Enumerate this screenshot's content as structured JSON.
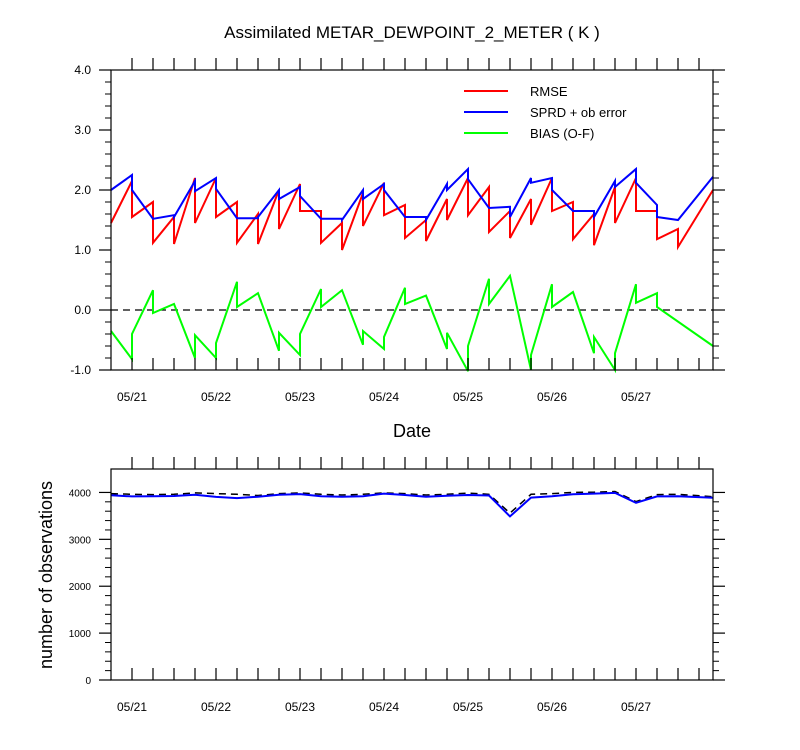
{
  "chart_data": [
    {
      "type": "line",
      "title": "Assimilated METAR_DEWPOINT_2_METER ( K )",
      "xlabel": "Date",
      "ylabel": "",
      "ylim": [
        -1.0,
        4.0
      ],
      "yticks": [
        "-1.0",
        "0.0",
        "1.0",
        "2.0",
        "3.0",
        "4.0"
      ],
      "xlim": [
        0,
        43
      ],
      "xtick_positions": [
        1.5,
        7.5,
        13.5,
        19.5,
        25.5,
        31.5,
        37.5
      ],
      "xtick_labels": [
        "05/21",
        "05/22",
        "05/23",
        "05/24",
        "05/25",
        "05/26",
        "05/27"
      ],
      "legend_position": "top-right",
      "reference_line": {
        "y": 0.0,
        "style": "dashed"
      },
      "colors": {
        "RMSE": "#ff0000",
        "SPRD + ob error": "#0000ff",
        "BIAS (O-F)": "#00ff00"
      },
      "series": [
        {
          "name": "RMSE",
          "color": "#ff0000",
          "segments": [
            [
              [
                0,
                1.45
              ],
              [
                1.5,
                2.15
              ],
              [
                1.5,
                1.55
              ],
              [
                3,
                1.8
              ],
              [
                3,
                1.12
              ],
              [
                4.5,
                1.55
              ],
              [
                4.5,
                1.1
              ],
              [
                6,
                2.2
              ],
              [
                6,
                1.45
              ],
              [
                7.5,
                2.2
              ],
              [
                7.5,
                1.55
              ],
              [
                9,
                1.8
              ],
              [
                9,
                1.12
              ],
              [
                10.5,
                1.6
              ],
              [
                10.5,
                1.1
              ],
              [
                12,
                2.0
              ],
              [
                12,
                1.35
              ],
              [
                13.5,
                2.1
              ],
              [
                13.5,
                1.65
              ],
              [
                15,
                1.65
              ],
              [
                15,
                1.12
              ],
              [
                16.5,
                1.45
              ],
              [
                16.5,
                1.0
              ],
              [
                18,
                1.95
              ],
              [
                18,
                1.4
              ],
              [
                19.5,
                2.12
              ],
              [
                19.5,
                1.58
              ],
              [
                21,
                1.75
              ],
              [
                21,
                1.2
              ],
              [
                22.5,
                1.5
              ],
              [
                22.5,
                1.15
              ],
              [
                24,
                1.85
              ],
              [
                24,
                1.5
              ],
              [
                25.5,
                2.2
              ],
              [
                25.5,
                1.58
              ],
              [
                27,
                2.05
              ],
              [
                27,
                1.3
              ],
              [
                28.5,
                1.65
              ],
              [
                28.5,
                1.2
              ],
              [
                30,
                1.85
              ],
              [
                30,
                1.42
              ],
              [
                31.5,
                2.2
              ],
              [
                31.5,
                1.65
              ],
              [
                33,
                1.8
              ],
              [
                33,
                1.18
              ],
              [
                34.5,
                1.6
              ],
              [
                34.5,
                1.08
              ],
              [
                36,
                2.05
              ],
              [
                36,
                1.45
              ],
              [
                37.5,
                2.2
              ],
              [
                37.5,
                1.65
              ],
              [
                39,
                1.65
              ],
              [
                39,
                1.18
              ],
              [
                40.5,
                1.35
              ],
              [
                40.5,
                1.05
              ],
              [
                43,
                2.0
              ]
            ]
          ]
        },
        {
          "name": "SPRD + ob error",
          "color": "#0000ff",
          "segments": [
            [
              [
                0,
                2.0
              ],
              [
                1.5,
                2.25
              ],
              [
                1.5,
                2.0
              ],
              [
                3,
                1.52
              ],
              [
                4.5,
                1.58
              ],
              [
                4.5,
                1.55
              ],
              [
                6,
                2.15
              ],
              [
                6,
                1.98
              ],
              [
                7.5,
                2.2
              ],
              [
                7.5,
                2.02
              ],
              [
                9,
                1.53
              ],
              [
                10.5,
                1.53
              ],
              [
                10.5,
                1.55
              ],
              [
                12,
                2.0
              ],
              [
                12,
                1.85
              ],
              [
                13.5,
                2.05
              ],
              [
                13.5,
                1.9
              ],
              [
                15,
                1.52
              ],
              [
                16.5,
                1.52
              ],
              [
                16.5,
                1.5
              ],
              [
                18,
                2.0
              ],
              [
                18,
                1.85
              ],
              [
                19.5,
                2.1
              ],
              [
                19.5,
                2.0
              ],
              [
                21,
                1.55
              ],
              [
                22.5,
                1.55
              ],
              [
                22.5,
                1.5
              ],
              [
                24,
                2.1
              ],
              [
                24,
                2.0
              ],
              [
                25.5,
                2.35
              ],
              [
                25.5,
                2.18
              ],
              [
                27,
                1.7
              ],
              [
                28.5,
                1.72
              ],
              [
                28.5,
                1.55
              ],
              [
                30,
                2.2
              ],
              [
                30,
                2.12
              ],
              [
                31.5,
                2.2
              ],
              [
                31.5,
                2.0
              ],
              [
                33,
                1.65
              ],
              [
                34.5,
                1.65
              ],
              [
                34.5,
                1.55
              ],
              [
                36,
                2.15
              ],
              [
                36,
                2.05
              ],
              [
                37.5,
                2.35
              ],
              [
                37.5,
                2.12
              ],
              [
                39,
                1.75
              ],
              [
                39,
                1.55
              ],
              [
                40.5,
                1.5
              ],
              [
                43,
                2.22
              ]
            ]
          ]
        },
        {
          "name": "BIAS (O-F)",
          "color": "#00ff00",
          "segments": [
            [
              [
                0,
                -0.35
              ],
              [
                1.5,
                -0.82
              ],
              [
                1.5,
                -0.4
              ],
              [
                3,
                0.33
              ],
              [
                3,
                -0.05
              ],
              [
                4.5,
                0.1
              ],
              [
                6,
                -0.8
              ],
              [
                6,
                -0.42
              ],
              [
                7.5,
                -0.8
              ],
              [
                7.5,
                -0.55
              ],
              [
                9,
                0.47
              ],
              [
                9,
                0.05
              ],
              [
                10.5,
                0.28
              ],
              [
                12,
                -0.68
              ],
              [
                12,
                -0.38
              ],
              [
                13.5,
                -0.75
              ],
              [
                13.5,
                -0.4
              ],
              [
                15,
                0.35
              ],
              [
                15,
                0.05
              ],
              [
                16.5,
                0.33
              ],
              [
                18,
                -0.58
              ],
              [
                18,
                -0.35
              ],
              [
                19.5,
                -0.65
              ],
              [
                19.5,
                -0.45
              ],
              [
                21,
                0.37
              ],
              [
                21,
                0.1
              ],
              [
                22.5,
                0.24
              ],
              [
                24,
                -0.65
              ],
              [
                24,
                -0.38
              ],
              [
                25.5,
                -1.02
              ],
              [
                25.5,
                -0.6
              ],
              [
                27,
                0.52
              ],
              [
                27,
                0.1
              ],
              [
                28.5,
                0.57
              ],
              [
                30,
                -1.0
              ],
              [
                30,
                -0.75
              ],
              [
                31.5,
                0.43
              ],
              [
                31.5,
                0.05
              ],
              [
                33,
                0.3
              ],
              [
                34.5,
                -0.72
              ],
              [
                34.5,
                -0.45
              ],
              [
                36,
                -1.0
              ],
              [
                36,
                -0.72
              ],
              [
                37.5,
                0.43
              ],
              [
                37.5,
                0.12
              ],
              [
                39,
                0.28
              ],
              [
                39,
                0.05
              ],
              [
                43,
                -0.6
              ]
            ]
          ]
        }
      ]
    },
    {
      "type": "line",
      "title": "",
      "xlabel": "",
      "ylabel": "number of observations",
      "ylim": [
        0,
        4500
      ],
      "yticks": [
        "0",
        "1000",
        "2000",
        "3000",
        "4000"
      ],
      "xlim": [
        0,
        43
      ],
      "xtick_positions": [
        1.5,
        7.5,
        13.5,
        19.5,
        25.5,
        31.5,
        37.5
      ],
      "xtick_labels": [
        "05/21",
        "05/22",
        "05/23",
        "05/24",
        "05/25",
        "05/26",
        "05/27"
      ],
      "series": [
        {
          "color": "#000000",
          "style": "dashed",
          "x": [
            0,
            1.5,
            3,
            4.5,
            6,
            7.5,
            9,
            10.5,
            12,
            13.5,
            15,
            16.5,
            18,
            19.5,
            21,
            22.5,
            24,
            25.5,
            27,
            28.5,
            30,
            31.5,
            33,
            34.5,
            36,
            37.5,
            39,
            40.5,
            43
          ],
          "values": [
            3975,
            3960,
            3955,
            3960,
            3990,
            3975,
            3960,
            3935,
            3975,
            3990,
            3960,
            3945,
            3960,
            3990,
            3975,
            3945,
            3960,
            3985,
            3960,
            3560,
            3960,
            3975,
            4000,
            4005,
            4020,
            3805,
            3955,
            3960,
            3910
          ]
        },
        {
          "color": "#0000ff",
          "style": "solid",
          "x": [
            0,
            1.5,
            3,
            4.5,
            6,
            7.5,
            9,
            10.5,
            12,
            13.5,
            15,
            16.5,
            18,
            19.5,
            21,
            22.5,
            24,
            25.5,
            27,
            28.5,
            30,
            31.5,
            33,
            34.5,
            36,
            37.5,
            39,
            40.5,
            43
          ],
          "values": [
            3940,
            3915,
            3920,
            3925,
            3950,
            3905,
            3880,
            3910,
            3950,
            3965,
            3920,
            3910,
            3920,
            3975,
            3945,
            3910,
            3930,
            3945,
            3935,
            3490,
            3890,
            3920,
            3960,
            3975,
            3990,
            3780,
            3915,
            3920,
            3885
          ]
        }
      ]
    }
  ]
}
